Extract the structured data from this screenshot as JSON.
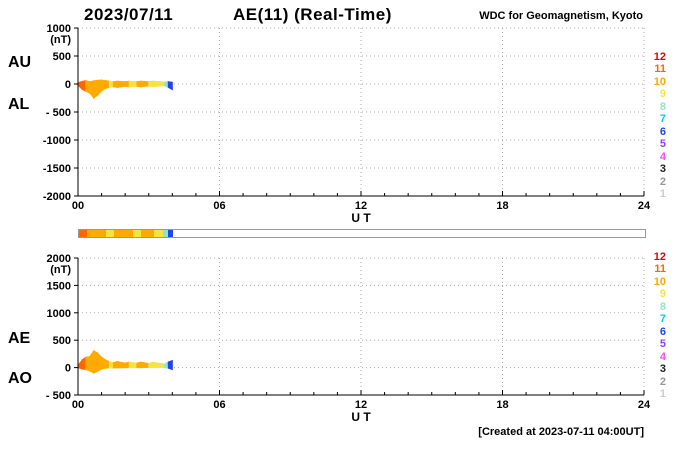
{
  "header": {
    "date": "2023/07/11",
    "title": "AE(11) (Real-Time)",
    "source": "WDC for Geomagnetism, Kyoto"
  },
  "footer": {
    "created_text": "[Created at 2023-07-11 04:00UT]"
  },
  "legend": {
    "station_counts": [
      12,
      11,
      10,
      9,
      8,
      7,
      6,
      5,
      4,
      3,
      2,
      1
    ],
    "colors": {
      "12": "#e60000",
      "11": "#ff6600",
      "10": "#ffaa00",
      "9": "#f5e342",
      "8": "#8ce8c8",
      "7": "#00ccff",
      "6": "#2244ee",
      "5": "#8844ff",
      "4": "#ff44ff",
      "3": "#222222",
      "2": "#999999",
      "1": "#cccccc"
    }
  },
  "availability_bar": {
    "xlim": [
      0,
      24
    ],
    "segments": [
      {
        "start": 0,
        "end": 0.35,
        "stations": 11
      },
      {
        "start": 0.35,
        "end": 1.15,
        "stations": 10
      },
      {
        "start": 1.15,
        "end": 1.5,
        "stations": 9
      },
      {
        "start": 1.5,
        "end": 2.3,
        "stations": 10
      },
      {
        "start": 2.3,
        "end": 2.65,
        "stations": 9
      },
      {
        "start": 2.65,
        "end": 3.2,
        "stations": 10
      },
      {
        "start": 3.2,
        "end": 3.55,
        "stations": 9
      },
      {
        "start": 3.55,
        "end": 3.8,
        "stations": 8
      },
      {
        "start": 3.8,
        "end": 4,
        "stations": 6
      }
    ]
  },
  "chart_data": [
    {
      "type": "area",
      "name": "au-al-panel",
      "left_labels": [
        "AU",
        "AL"
      ],
      "unit_label": "(nT)",
      "xlabel": "U T",
      "xlim": [
        0,
        24
      ],
      "xticks": [
        0,
        6,
        12,
        18,
        24
      ],
      "xtick_labels": [
        "00",
        "06",
        "12",
        "18",
        "24"
      ],
      "ylim": [
        -2000,
        1000
      ],
      "yticks": [
        1000,
        500,
        0,
        -500,
        -1000,
        -1500,
        -2000
      ],
      "ytick_labels": [
        "1000",
        "500",
        "0",
        "- 500",
        "-1000",
        "-1500",
        "-2000"
      ],
      "x_hours": [
        0,
        0.17,
        0.33,
        0.5,
        0.67,
        0.83,
        1,
        1.17,
        1.33,
        1.5,
        1.67,
        1.83,
        2,
        2.17,
        2.33,
        2.5,
        2.67,
        2.83,
        3,
        3.17,
        3.33,
        3.5,
        3.67,
        3.83,
        4
      ],
      "series": [
        {
          "name": "AU",
          "values": [
            20,
            45,
            60,
            40,
            55,
            65,
            70,
            60,
            50,
            40,
            50,
            45,
            40,
            50,
            45,
            40,
            50,
            45,
            40,
            50,
            45,
            40,
            35,
            40,
            30
          ]
        },
        {
          "name": "AL",
          "values": [
            -20,
            -90,
            -130,
            -160,
            -250,
            -200,
            -120,
            -80,
            -60,
            -50,
            -60,
            -50,
            -40,
            -50,
            -45,
            -40,
            -50,
            -40,
            -35,
            -45,
            -40,
            -35,
            -30,
            -60,
            -100
          ]
        }
      ],
      "stations_per_sample": [
        11,
        11,
        10,
        10,
        10,
        10,
        10,
        10,
        9,
        10,
        10,
        10,
        10,
        9,
        9,
        10,
        10,
        10,
        9,
        9,
        9,
        9,
        8,
        6,
        6
      ]
    },
    {
      "type": "area",
      "name": "ae-ao-panel",
      "left_labels": [
        "AE",
        "AO"
      ],
      "unit_label": "(nT)",
      "xlabel": "U T",
      "xlim": [
        0,
        24
      ],
      "xticks": [
        0,
        6,
        12,
        18,
        24
      ],
      "xtick_labels": [
        "00",
        "06",
        "12",
        "18",
        "24"
      ],
      "ylim": [
        -500,
        2000
      ],
      "yticks": [
        2000,
        1500,
        1000,
        500,
        0,
        -500
      ],
      "ytick_labels": [
        "2000",
        "1500",
        "1000",
        "500",
        "0",
        "- 500"
      ],
      "x_hours": [
        0,
        0.17,
        0.33,
        0.5,
        0.67,
        0.83,
        1,
        1.17,
        1.33,
        1.5,
        1.67,
        1.83,
        2,
        2.17,
        2.33,
        2.5,
        2.67,
        2.83,
        3,
        3.17,
        3.33,
        3.5,
        3.67,
        3.83,
        4
      ],
      "series": [
        {
          "name": "AE",
          "values": [
            40,
            135,
            190,
            200,
            305,
            265,
            190,
            140,
            110,
            90,
            110,
            95,
            80,
            100,
            90,
            80,
            100,
            85,
            75,
            95,
            85,
            75,
            65,
            100,
            130
          ]
        },
        {
          "name": "AO",
          "values": [
            0,
            -23,
            -35,
            -60,
            -98,
            -68,
            -25,
            -10,
            -5,
            -5,
            -5,
            -3,
            0,
            0,
            0,
            0,
            0,
            3,
            3,
            3,
            3,
            3,
            3,
            -10,
            -35
          ]
        }
      ],
      "stations_per_sample": [
        11,
        11,
        10,
        10,
        10,
        10,
        10,
        10,
        9,
        10,
        10,
        10,
        10,
        9,
        9,
        10,
        10,
        10,
        9,
        9,
        9,
        9,
        8,
        6,
        6
      ]
    }
  ]
}
